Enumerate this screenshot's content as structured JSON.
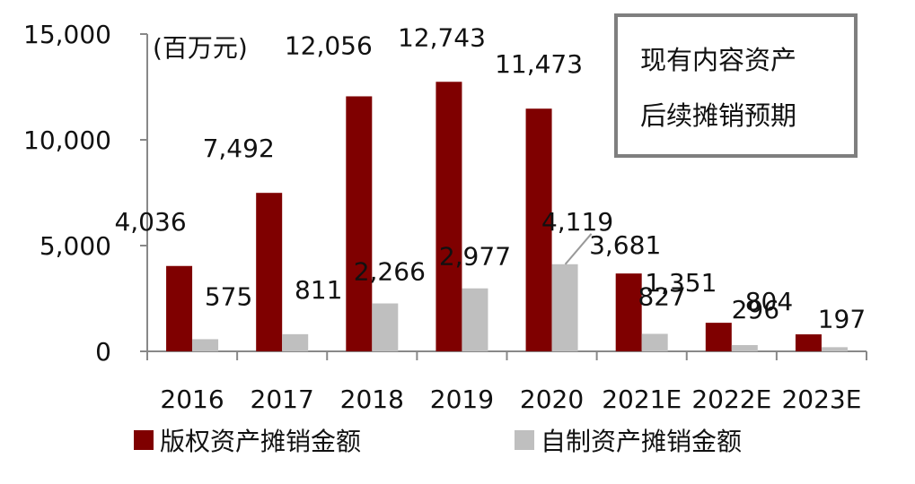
{
  "chart_data": {
    "type": "bar",
    "unit_label": "(百万元)",
    "categories": [
      "2016",
      "2017",
      "2018",
      "2019",
      "2020",
      "2021E",
      "2022E",
      "2023E"
    ],
    "series": [
      {
        "name": "版权资产摊销金额",
        "color": "#7f0000",
        "values": [
          4036,
          7492,
          12056,
          12743,
          11473,
          3681,
          1351,
          804
        ],
        "labels": [
          "4,036",
          "7,492",
          "12,056",
          "12,743",
          "11,473",
          "3,681",
          "1,351",
          "804"
        ]
      },
      {
        "name": "自制资产摊销金额",
        "color": "#bfbfbf",
        "values": [
          575,
          811,
          2266,
          2977,
          4119,
          827,
          296,
          197
        ],
        "labels": [
          "575",
          "811",
          "2,266",
          "2,977",
          "4,119",
          "827",
          "296",
          "197"
        ]
      }
    ],
    "ylim": [
      0,
      15000
    ],
    "yticks": [
      0,
      5000,
      10000,
      15000
    ],
    "ytick_labels": [
      "0",
      "5,000",
      "10,000",
      "15,000"
    ],
    "annotation": {
      "lines": [
        "现有内容资产",
        "后续摊销预期"
      ]
    },
    "grid": false,
    "legend_position": "bottom"
  }
}
